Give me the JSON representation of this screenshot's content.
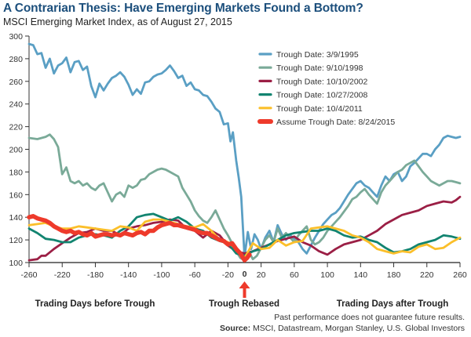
{
  "header": {
    "title": "A Contrarian Thesis: Have Emerging Markets Found a Bottom?",
    "subtitle": "MSCI Emerging Market Index, as of August 27, 2015"
  },
  "footer": {
    "disclaimer": "Past performance does not guarantee future results.",
    "source_label": "Source:",
    "source_text": " MSCI, Datastream, Morgan Stanley, U.S. Global Investors"
  },
  "chart_data": {
    "type": "line",
    "title": "A Contrarian Thesis: Have Emerging Markets Found a Bottom?",
    "subtitle": "MSCI Emerging Market Index, as of August 27, 2015",
    "xlabel_left": "Trading Days before Trough",
    "xlabel_center": "Trough Rebased",
    "xlabel_right": "Trading Days after Trough",
    "ylabel": "",
    "xlim": [
      -260,
      260
    ],
    "ylim": [
      100,
      300
    ],
    "x_ticks": [
      -260,
      -220,
      -180,
      -140,
      -100,
      -60,
      -20,
      0,
      20,
      60,
      100,
      140,
      180,
      220,
      260
    ],
    "x_tick_labels": [
      "-260",
      "-220",
      "-180",
      "-140",
      "-100",
      "-60",
      "-20",
      "0",
      "20",
      "60",
      "100",
      "140",
      "180",
      "220",
      "260"
    ],
    "y_ticks": [
      100,
      120,
      140,
      160,
      180,
      200,
      220,
      240,
      260,
      280,
      300
    ],
    "y_tick_labels": [
      "100",
      "120",
      "140",
      "160",
      "180",
      "200",
      "220",
      "240",
      "260",
      "280",
      "300"
    ],
    "grid": false,
    "legend_position": "top-right",
    "annotation": {
      "label": "0",
      "marker": "red up-arrow below x=0",
      "color": "#ee3a2b"
    },
    "series": [
      {
        "name": "Trough Date: 3/9/1995",
        "color": "#5a9fc4",
        "x": [
          -260,
          -255,
          -250,
          -245,
          -240,
          -235,
          -230,
          -225,
          -220,
          -215,
          -210,
          -205,
          -200,
          -195,
          -190,
          -185,
          -180,
          -175,
          -170,
          -165,
          -160,
          -155,
          -150,
          -145,
          -140,
          -135,
          -130,
          -125,
          -120,
          -115,
          -110,
          -105,
          -100,
          -95,
          -90,
          -85,
          -80,
          -75,
          -70,
          -65,
          -60,
          -55,
          -50,
          -45,
          -40,
          -35,
          -30,
          -25,
          -20,
          -17,
          -14,
          -10,
          -7,
          -4,
          0,
          4,
          8,
          12,
          16,
          20,
          25,
          30,
          35,
          40,
          45,
          50,
          55,
          60,
          65,
          70,
          75,
          80,
          85,
          90,
          95,
          100,
          105,
          110,
          115,
          120,
          125,
          130,
          135,
          140,
          145,
          150,
          155,
          160,
          165,
          170,
          175,
          180,
          185,
          190,
          195,
          200,
          205,
          210,
          215,
          220,
          225,
          230,
          235,
          240,
          245,
          250,
          255,
          260
        ],
        "values": [
          293,
          292,
          284,
          285,
          272,
          280,
          267,
          274,
          276,
          281,
          268,
          277,
          278,
          270,
          273,
          256,
          246,
          258,
          252,
          258,
          263,
          265,
          268,
          264,
          257,
          248,
          253,
          249,
          259,
          260,
          264,
          266,
          267,
          270,
          274,
          269,
          263,
          265,
          256,
          259,
          253,
          252,
          248,
          247,
          242,
          236,
          233,
          222,
          223,
          207,
          215,
          190,
          175,
          158,
          105,
          127,
          112,
          125,
          120,
          112,
          122,
          128,
          118,
          133,
          125,
          120,
          124,
          121,
          118,
          112,
          108,
          115,
          122,
          128,
          134,
          138,
          142,
          144,
          148,
          154,
          160,
          165,
          170,
          172,
          168,
          166,
          162,
          158,
          168,
          176,
          172,
          178,
          180,
          172,
          176,
          185,
          188,
          192,
          196,
          196,
          194,
          200,
          204,
          210,
          212,
          211,
          210,
          211
        ]
      },
      {
        "name": "Trough Date: 9/10/1998",
        "color": "#7aaa98",
        "x": [
          -260,
          -250,
          -240,
          -235,
          -230,
          -225,
          -220,
          -215,
          -210,
          -205,
          -200,
          -195,
          -190,
          -185,
          -180,
          -175,
          -170,
          -165,
          -160,
          -155,
          -150,
          -145,
          -140,
          -135,
          -130,
          -125,
          -120,
          -115,
          -110,
          -105,
          -100,
          -95,
          -90,
          -85,
          -80,
          -75,
          -70,
          -65,
          -60,
          -55,
          -50,
          -45,
          -40,
          -35,
          -30,
          -25,
          -20,
          -15,
          -10,
          -5,
          0,
          5,
          10,
          15,
          20,
          25,
          30,
          35,
          40,
          45,
          50,
          55,
          60,
          65,
          70,
          75,
          80,
          85,
          90,
          95,
          100,
          105,
          110,
          115,
          120,
          125,
          130,
          135,
          140,
          145,
          150,
          155,
          160,
          165,
          170,
          175,
          180,
          185,
          190,
          195,
          200,
          205,
          210,
          215,
          220,
          225,
          230,
          235,
          240,
          245,
          250,
          255,
          260
        ],
        "values": [
          210,
          209,
          211,
          213,
          209,
          202,
          178,
          184,
          172,
          170,
          172,
          168,
          170,
          166,
          164,
          168,
          170,
          162,
          154,
          160,
          162,
          158,
          168,
          166,
          168,
          173,
          174,
          178,
          180,
          182,
          183,
          182,
          180,
          178,
          176,
          166,
          160,
          154,
          146,
          141,
          137,
          135,
          140,
          146,
          138,
          130,
          124,
          117,
          110,
          104,
          102,
          110,
          103,
          106,
          113,
          120,
          124,
          118,
          130,
          122,
          126,
          122,
          118,
          124,
          128,
          132,
          120,
          116,
          118,
          122,
          128,
          132,
          136,
          140,
          145,
          150,
          156,
          158,
          162,
          165,
          160,
          156,
          152,
          162,
          168,
          172,
          176,
          180,
          182,
          186,
          188,
          190,
          185,
          180,
          176,
          172,
          170,
          168,
          170,
          172,
          172,
          171,
          170
        ]
      },
      {
        "name": "Trough Date: 10/10/2002",
        "color": "#9b1f45",
        "x": [
          -260,
          -250,
          -245,
          -240,
          -230,
          -220,
          -210,
          -200,
          -190,
          -180,
          -170,
          -160,
          -150,
          -140,
          -130,
          -120,
          -110,
          -100,
          -90,
          -80,
          -70,
          -60,
          -50,
          -40,
          -30,
          -20,
          -10,
          0,
          10,
          20,
          30,
          40,
          50,
          60,
          70,
          80,
          90,
          100,
          110,
          120,
          130,
          140,
          150,
          160,
          170,
          180,
          190,
          200,
          210,
          220,
          230,
          240,
          250,
          255,
          260
        ],
        "values": [
          102,
          103,
          106,
          106,
          112,
          117,
          122,
          126,
          127,
          130,
          128,
          128,
          124,
          130,
          132,
          133,
          135,
          136,
          138,
          137,
          130,
          128,
          122,
          128,
          124,
          115,
          110,
          108,
          110,
          113,
          116,
          119,
          121,
          123,
          118,
          115,
          110,
          107,
          112,
          116,
          118,
          120,
          124,
          128,
          134,
          138,
          142,
          144,
          146,
          150,
          152,
          154,
          153,
          155,
          158
        ]
      },
      {
        "name": "Trough Date: 10/27/2008",
        "color": "#128470",
        "x": [
          -260,
          -250,
          -240,
          -230,
          -220,
          -210,
          -200,
          -190,
          -180,
          -170,
          -160,
          -150,
          -140,
          -130,
          -120,
          -110,
          -100,
          -90,
          -80,
          -70,
          -60,
          -50,
          -40,
          -30,
          -20,
          -10,
          0,
          10,
          20,
          30,
          40,
          50,
          60,
          70,
          80,
          90,
          100,
          110,
          120,
          130,
          140,
          150,
          160,
          170,
          180,
          190,
          200,
          210,
          220,
          230,
          240,
          250,
          260
        ],
        "values": [
          130,
          126,
          121,
          120,
          118,
          118,
          122,
          124,
          125,
          124,
          122,
          128,
          132,
          140,
          142,
          143,
          140,
          137,
          140,
          136,
          130,
          128,
          122,
          119,
          117,
          108,
          106,
          110,
          112,
          116,
          120,
          124,
          126,
          127,
          128,
          128,
          130,
          128,
          124,
          122,
          123,
          120,
          118,
          113,
          109,
          110,
          112,
          116,
          118,
          120,
          124,
          123,
          121
        ]
      },
      {
        "name": "Trough Date: 10/4/2011",
        "color": "#fbbf2a",
        "x": [
          -260,
          -250,
          -240,
          -230,
          -220,
          -210,
          -200,
          -190,
          -180,
          -170,
          -160,
          -150,
          -140,
          -130,
          -120,
          -110,
          -100,
          -90,
          -80,
          -70,
          -60,
          -50,
          -40,
          -30,
          -20,
          -10,
          0,
          10,
          20,
          30,
          40,
          50,
          60,
          70,
          80,
          90,
          100,
          110,
          120,
          130,
          140,
          150,
          160,
          170,
          180,
          190,
          200,
          210,
          220,
          230,
          240,
          250,
          260
        ],
        "values": [
          133,
          134,
          135,
          132,
          130,
          130,
          132,
          131,
          130,
          129,
          128,
          132,
          131,
          128,
          136,
          138,
          138,
          136,
          134,
          132,
          131,
          134,
          128,
          120,
          118,
          112,
          104,
          117,
          112,
          113,
          120,
          115,
          118,
          119,
          130,
          131,
          132,
          130,
          128,
          124,
          122,
          118,
          112,
          110,
          108,
          110,
          109,
          114,
          116,
          112,
          113,
          118,
          122
        ]
      },
      {
        "name": "Assume Trough Date: 8/24/2015",
        "color": "#ee3a2b",
        "x": [
          -260,
          -255,
          -250,
          -245,
          -240,
          -235,
          -230,
          -225,
          -220,
          -215,
          -210,
          -205,
          -200,
          -195,
          -190,
          -185,
          -180,
          -175,
          -170,
          -165,
          -160,
          -155,
          -150,
          -145,
          -140,
          -135,
          -130,
          -125,
          -120,
          -115,
          -110,
          -105,
          -100,
          -95,
          -90,
          -85,
          -80,
          -75,
          -70,
          -65,
          -60,
          -55,
          -50,
          -45,
          -40,
          -35,
          -30,
          -25,
          -20,
          -15,
          -10,
          -5,
          0,
          3,
          6
        ],
        "values": [
          140,
          141,
          139,
          138,
          137,
          135,
          132,
          130,
          128,
          127,
          128,
          126,
          127,
          125,
          124,
          126,
          123,
          124,
          125,
          125,
          124,
          125,
          124,
          126,
          125,
          124,
          126,
          127,
          125,
          128,
          128,
          131,
          133,
          134,
          135,
          133,
          133,
          132,
          131,
          130,
          129,
          127,
          126,
          126,
          124,
          122,
          120,
          119,
          116,
          117,
          112,
          108,
          102,
          104,
          107
        ]
      }
    ]
  }
}
